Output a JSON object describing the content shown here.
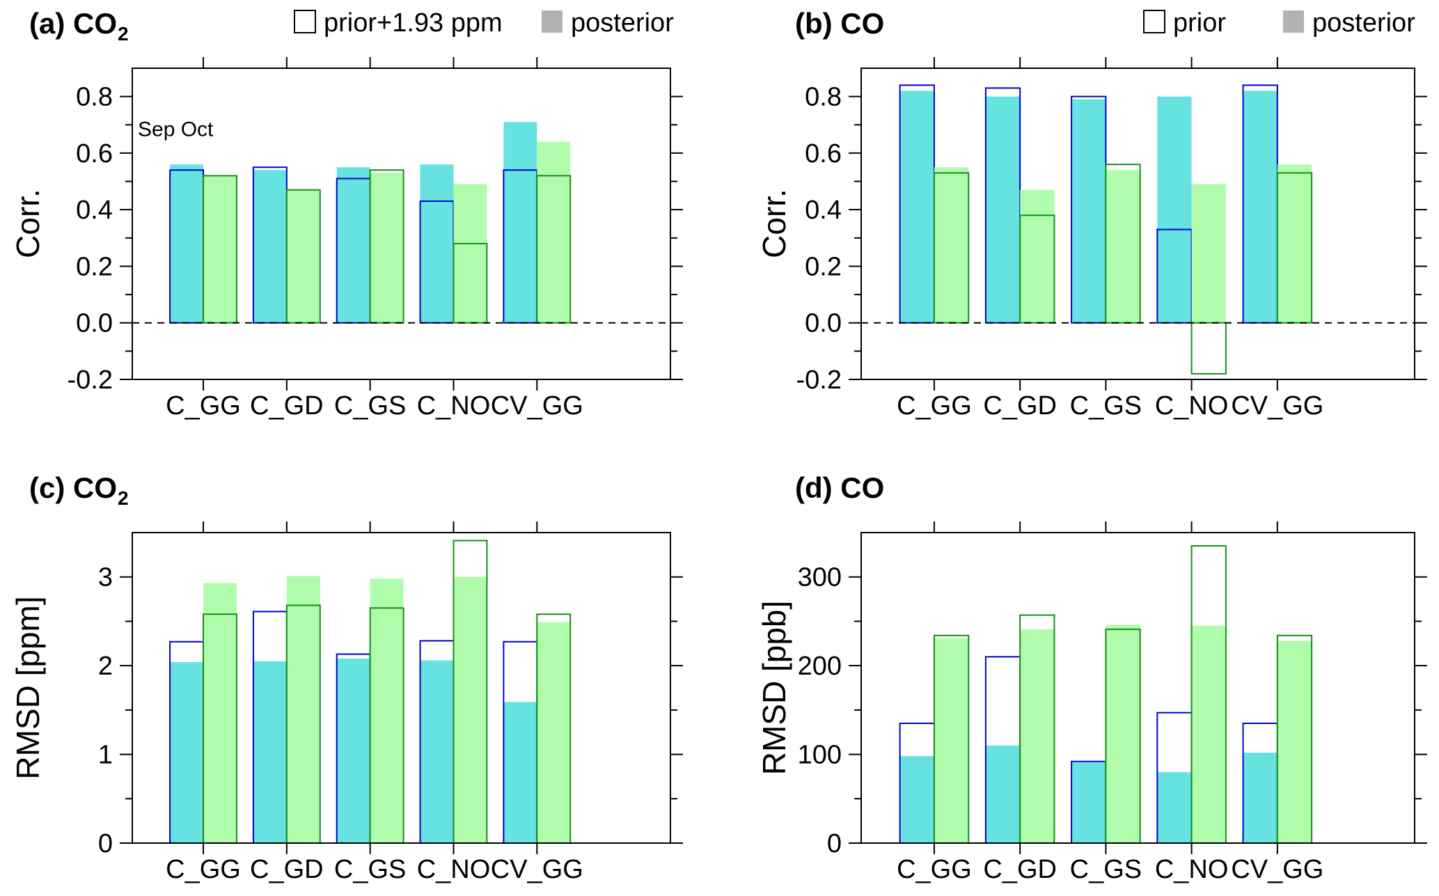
{
  "chart_data": [
    {
      "id": "a",
      "type": "bar",
      "title": "(a) CO",
      "title_subscript": "2",
      "ylabel": "Corr.",
      "ylim": [
        -0.2,
        0.9
      ],
      "yticks": [
        "-0.2",
        "0.0",
        "0.2",
        "0.4",
        "0.6",
        "0.8"
      ],
      "ytick_values": [
        -0.2,
        0.0,
        0.2,
        0.4,
        0.6,
        0.8
      ],
      "minor_ticks": [
        -0.1,
        0.1,
        0.3,
        0.5,
        0.7
      ],
      "zero_line": true,
      "categories": [
        "C_GG",
        "C_GD",
        "C_GS",
        "C_NO",
        "CV_GG"
      ],
      "annotation": "Sep Oct",
      "legend": {
        "prior_label": "prior+1.93 ppm",
        "posterior_label": "posterior"
      },
      "series": [
        {
          "name": "Sep prior",
          "month": "Sep",
          "kind": "prior",
          "values": [
            0.54,
            0.55,
            0.51,
            0.43,
            0.54
          ]
        },
        {
          "name": "Sep posterior",
          "month": "Sep",
          "kind": "posterior",
          "values": [
            0.56,
            0.54,
            0.55,
            0.56,
            0.71
          ]
        },
        {
          "name": "Oct prior",
          "month": "Oct",
          "kind": "prior",
          "values": [
            0.52,
            0.47,
            0.54,
            0.28,
            0.52
          ]
        },
        {
          "name": "Oct posterior",
          "month": "Oct",
          "kind": "posterior",
          "values": [
            0.52,
            0.47,
            0.53,
            0.49,
            0.64
          ]
        }
      ]
    },
    {
      "id": "b",
      "type": "bar",
      "title": "(b) CO",
      "title_subscript": "",
      "ylabel": "Corr.",
      "ylim": [
        -0.2,
        0.9
      ],
      "yticks": [
        "-0.2",
        "0.0",
        "0.2",
        "0.4",
        "0.6",
        "0.8"
      ],
      "ytick_values": [
        -0.2,
        0.0,
        0.2,
        0.4,
        0.6,
        0.8
      ],
      "minor_ticks": [
        -0.1,
        0.1,
        0.3,
        0.5,
        0.7
      ],
      "zero_line": true,
      "categories": [
        "C_GG",
        "C_GD",
        "C_GS",
        "C_NO",
        "CV_GG"
      ],
      "annotation": "",
      "legend": {
        "prior_label": "prior",
        "posterior_label": "posterior"
      },
      "series": [
        {
          "name": "Sep prior",
          "month": "Sep",
          "kind": "prior",
          "values": [
            0.84,
            0.83,
            0.8,
            0.33,
            0.84
          ]
        },
        {
          "name": "Sep posterior",
          "month": "Sep",
          "kind": "posterior",
          "values": [
            0.82,
            0.8,
            0.79,
            0.8,
            0.82
          ]
        },
        {
          "name": "Oct prior",
          "month": "Oct",
          "kind": "prior",
          "values": [
            0.53,
            0.38,
            0.56,
            -0.18,
            0.53
          ]
        },
        {
          "name": "Oct posterior",
          "month": "Oct",
          "kind": "posterior",
          "values": [
            0.55,
            0.47,
            0.54,
            0.49,
            0.56
          ]
        }
      ]
    },
    {
      "id": "c",
      "type": "bar",
      "title": "(c) CO",
      "title_subscript": "2",
      "ylabel": "RMSD [ppm]",
      "ylim": [
        0,
        3.5
      ],
      "yticks": [
        "0",
        "1",
        "2",
        "3"
      ],
      "ytick_values": [
        0,
        1,
        2,
        3
      ],
      "minor_ticks": [
        0.5,
        1.5,
        2.5
      ],
      "zero_line": false,
      "categories": [
        "C_GG",
        "C_GD",
        "C_GS",
        "C_NO",
        "CV_GG"
      ],
      "annotation": "",
      "series": [
        {
          "name": "Sep prior",
          "month": "Sep",
          "kind": "prior",
          "values": [
            2.27,
            2.61,
            2.13,
            2.28,
            2.27
          ]
        },
        {
          "name": "Sep posterior",
          "month": "Sep",
          "kind": "posterior",
          "values": [
            2.04,
            2.05,
            2.08,
            2.06,
            1.59
          ]
        },
        {
          "name": "Oct prior",
          "month": "Oct",
          "kind": "prior",
          "values": [
            2.58,
            2.68,
            2.65,
            3.41,
            2.58
          ]
        },
        {
          "name": "Oct posterior",
          "month": "Oct",
          "kind": "posterior",
          "values": [
            2.93,
            3.01,
            2.98,
            3.0,
            2.49
          ]
        }
      ]
    },
    {
      "id": "d",
      "type": "bar",
      "title": "(d) CO",
      "title_subscript": "",
      "ylabel": "RMSD [ppb]",
      "ylim": [
        0,
        350
      ],
      "yticks": [
        "0",
        "100",
        "200",
        "300"
      ],
      "ytick_values": [
        0,
        100,
        200,
        300
      ],
      "minor_ticks": [
        50,
        150,
        250
      ],
      "zero_line": false,
      "categories": [
        "C_GG",
        "C_GD",
        "C_GS",
        "C_NO",
        "CV_GG"
      ],
      "annotation": "",
      "series": [
        {
          "name": "Sep prior",
          "month": "Sep",
          "kind": "prior",
          "values": [
            135,
            210,
            92,
            147,
            135
          ]
        },
        {
          "name": "Sep posterior",
          "month": "Sep",
          "kind": "posterior",
          "values": [
            98,
            110,
            91,
            80,
            102
          ]
        },
        {
          "name": "Oct prior",
          "month": "Oct",
          "kind": "prior",
          "values": [
            234,
            257,
            241,
            335,
            234
          ]
        },
        {
          "name": "Oct posterior",
          "month": "Oct",
          "kind": "posterior",
          "values": [
            231,
            241,
            246,
            245,
            228
          ]
        }
      ]
    }
  ],
  "colors": {
    "sep_fill": "#66e3e0",
    "sep_edge": "#0000cc",
    "oct_fill": "#b0fcac",
    "oct_edge": "#138f13",
    "legend_fill": "#b2b2b2",
    "axis": "#000000"
  }
}
